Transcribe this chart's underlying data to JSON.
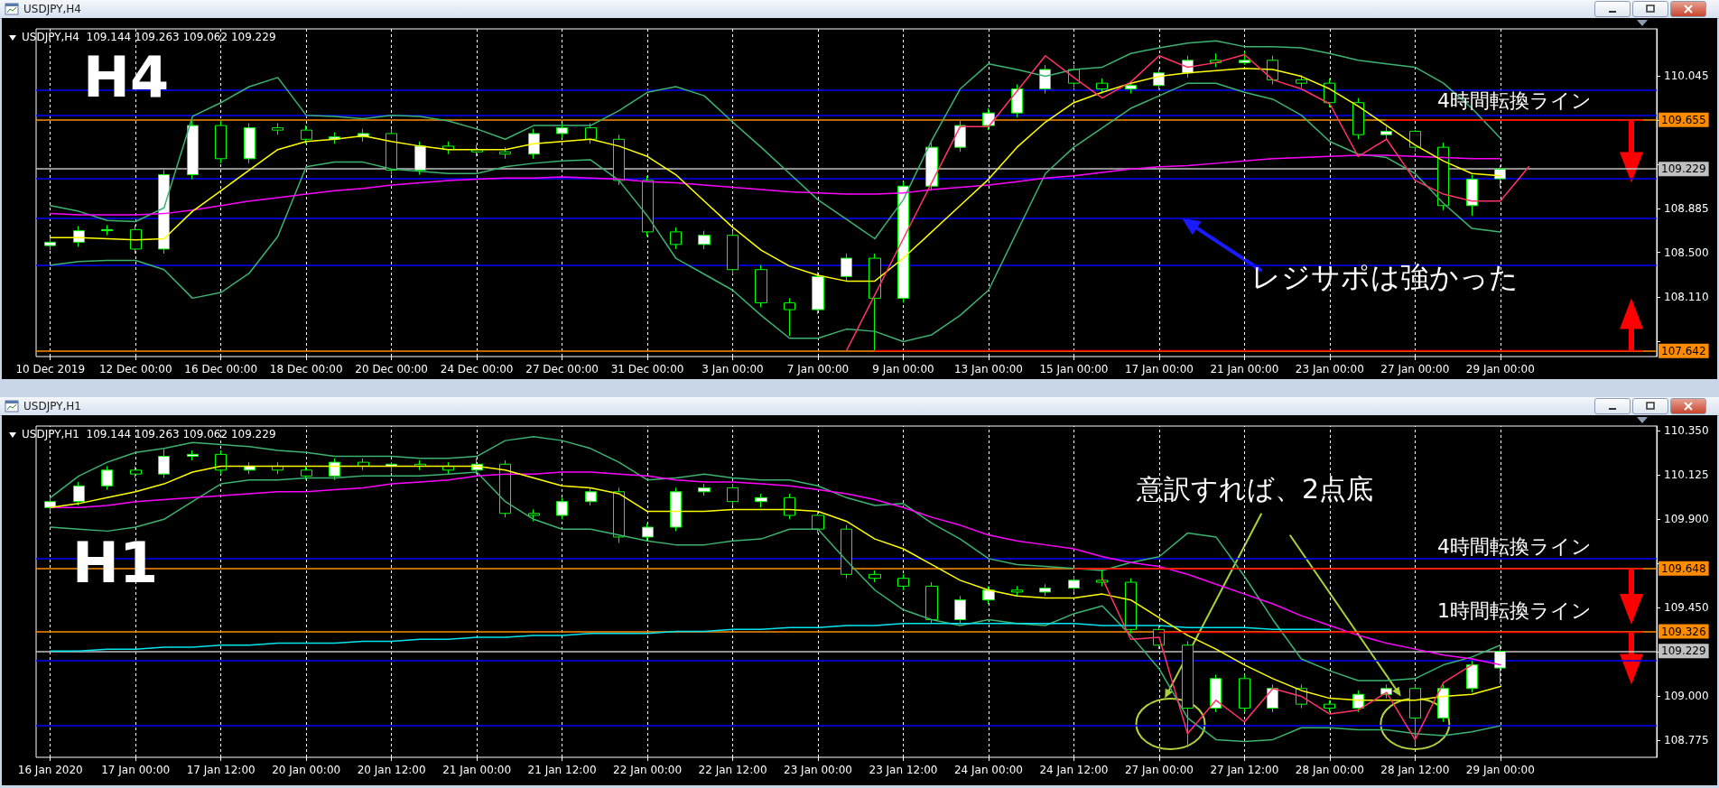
{
  "chart_data": [
    {
      "type": "candlestick",
      "title": "USDJPY,H4",
      "subtitle": "USDJPY,H4  109.144 109.263 109.062 109.229",
      "color": "#00ff00",
      "grid": "x",
      "marker": "none",
      "line_style": "solid",
      "categories": [
        "10 Dec 2019",
        null,
        null,
        "12 Dec 00:00",
        null,
        null,
        "16 Dec 00:00",
        null,
        null,
        "18 Dec 00:00",
        null,
        null,
        "20 Dec 00:00",
        null,
        null,
        "24 Dec 00:00",
        null,
        null,
        "27 Dec 00:00",
        null,
        null,
        "31 Dec 00:00",
        null,
        null,
        "3 Jan 00:00",
        null,
        null,
        "7 Jan 00:00",
        null,
        null,
        "9 Jan 00:00",
        null,
        null,
        "13 Jan 00:00",
        null,
        null,
        "15 Jan 00:00",
        null,
        null,
        "17 Jan 00:00",
        null,
        null,
        "21 Jan 00:00",
        null,
        null,
        "23 Jan 00:00",
        null,
        null,
        "27 Jan 00:00",
        null,
        null,
        "29 Jan 00:00",
        null,
        null,
        null,
        null,
        null
      ],
      "ohlc": [
        [
          108.56,
          108.63,
          108.52,
          108.59
        ],
        [
          108.59,
          108.73,
          108.55,
          108.69
        ],
        [
          108.69,
          108.74,
          108.65,
          108.7
        ],
        [
          108.7,
          108.74,
          108.49,
          108.53
        ],
        [
          108.53,
          109.22,
          108.49,
          109.18
        ],
        [
          109.18,
          109.65,
          109.14,
          109.61
        ],
        [
          109.61,
          109.65,
          109.28,
          109.32
        ],
        [
          109.32,
          109.63,
          109.28,
          109.59
        ],
        [
          109.59,
          109.63,
          109.53,
          109.57
        ],
        [
          109.57,
          109.61,
          109.45,
          109.49
        ],
        [
          109.49,
          109.55,
          109.45,
          109.51
        ],
        [
          109.51,
          109.58,
          109.47,
          109.54
        ],
        [
          109.54,
          109.58,
          109.18,
          109.22
        ],
        [
          109.22,
          109.47,
          109.18,
          109.43
        ],
        [
          109.43,
          109.47,
          109.36,
          109.4
        ],
        [
          109.4,
          109.44,
          109.34,
          109.38
        ],
        [
          109.38,
          109.42,
          109.32,
          109.36
        ],
        [
          109.36,
          109.58,
          109.32,
          109.54
        ],
        [
          109.54,
          109.63,
          109.5,
          109.59
        ],
        [
          109.59,
          109.63,
          109.45,
          109.49
        ],
        [
          109.49,
          109.53,
          109.09,
          109.13
        ],
        [
          109.13,
          109.17,
          108.64,
          108.68
        ],
        [
          108.68,
          108.72,
          108.53,
          108.57
        ],
        [
          108.57,
          108.69,
          108.53,
          108.65
        ],
        [
          108.65,
          108.69,
          108.31,
          108.35
        ],
        [
          108.35,
          108.39,
          108.02,
          108.06
        ],
        [
          108.06,
          108.1,
          107.77,
          108.0
        ],
        [
          108.0,
          108.33,
          107.96,
          108.29
        ],
        [
          108.29,
          108.49,
          108.25,
          108.45
        ],
        [
          108.45,
          108.49,
          107.642,
          108.1
        ],
        [
          108.1,
          109.12,
          108.06,
          109.08
        ],
        [
          109.08,
          109.46,
          109.04,
          109.42
        ],
        [
          109.42,
          109.65,
          109.38,
          109.61
        ],
        [
          109.61,
          109.76,
          109.57,
          109.72
        ],
        [
          109.72,
          109.97,
          109.68,
          109.93
        ],
        [
          109.93,
          110.14,
          109.89,
          110.1
        ],
        [
          110.1,
          110.14,
          109.94,
          109.98
        ],
        [
          109.98,
          110.02,
          109.89,
          109.93
        ],
        [
          109.93,
          110.0,
          109.89,
          109.96
        ],
        [
          109.96,
          110.11,
          109.92,
          110.07
        ],
        [
          110.07,
          110.22,
          110.03,
          110.18
        ],
        [
          110.18,
          110.24,
          110.12,
          110.16
        ],
        [
          110.16,
          110.26,
          110.14,
          110.18
        ],
        [
          110.18,
          110.22,
          109.97,
          110.01
        ],
        [
          110.01,
          110.05,
          109.94,
          109.98
        ],
        [
          109.98,
          110.02,
          109.77,
          109.81
        ],
        [
          109.81,
          109.85,
          109.49,
          109.53
        ],
        [
          109.53,
          109.6,
          109.49,
          109.56
        ],
        [
          109.56,
          109.57,
          109.38,
          109.42
        ],
        [
          109.42,
          109.46,
          108.87,
          108.91
        ],
        [
          108.91,
          109.18,
          108.82,
          109.14
        ],
        [
          109.144,
          109.263,
          109.062,
          109.229
        ],
        null,
        null,
        null,
        null,
        null
      ],
      "series": [
        {
          "type": "line",
          "color": "#3cb371",
          "values": [
            108.91,
            108.86,
            108.78,
            108.77,
            108.89,
            109.69,
            109.81,
            109.95,
            110.03,
            109.7,
            109.69,
            109.67,
            109.7,
            109.69,
            109.65,
            109.58,
            109.49,
            109.61,
            109.61,
            109.61,
            109.74,
            109.9,
            109.95,
            109.87,
            109.64,
            109.42,
            109.19,
            108.96,
            108.79,
            108.62,
            108.96,
            109.48,
            109.93,
            110.15,
            110.1,
            110.04,
            110.1,
            110.12,
            110.24,
            110.29,
            110.33,
            110.35,
            110.3,
            110.3,
            110.29,
            110.24,
            110.18,
            110.15,
            110.12,
            109.98,
            109.76,
            109.5,
            null,
            null,
            null,
            null,
            null
          ]
        },
        {
          "type": "line",
          "color": "#3cb371",
          "values": [
            108.39,
            108.42,
            108.43,
            108.43,
            108.35,
            108.1,
            108.15,
            108.32,
            108.64,
            109.25,
            109.29,
            109.29,
            109.23,
            109.21,
            109.19,
            109.19,
            109.25,
            109.28,
            109.3,
            109.31,
            109.13,
            108.82,
            108.45,
            108.31,
            108.17,
            107.95,
            107.75,
            107.75,
            107.83,
            107.81,
            107.72,
            107.78,
            107.95,
            108.17,
            108.68,
            109.19,
            109.42,
            109.59,
            109.76,
            109.87,
            109.98,
            109.98,
            109.9,
            109.84,
            109.7,
            109.47,
            109.36,
            109.33,
            109.19,
            108.93,
            108.71,
            108.68,
            null,
            null,
            null,
            null,
            null
          ]
        },
        {
          "type": "line",
          "color": "#ff00ff",
          "values": [
            108.84,
            108.83,
            108.83,
            108.83,
            108.84,
            108.87,
            108.91,
            108.95,
            108.98,
            109.01,
            109.04,
            109.06,
            109.09,
            109.11,
            109.13,
            109.14,
            109.15,
            109.15,
            109.16,
            109.15,
            109.14,
            109.12,
            109.11,
            109.09,
            109.07,
            109.05,
            109.03,
            109.02,
            109.01,
            109.01,
            109.02,
            109.05,
            109.07,
            109.09,
            109.12,
            109.15,
            109.17,
            109.2,
            109.23,
            109.25,
            109.26,
            109.28,
            109.3,
            109.32,
            109.33,
            109.34,
            109.35,
            109.35,
            109.34,
            109.33,
            109.32,
            109.32,
            null,
            null,
            null,
            null,
            null
          ]
        },
        {
          "type": "line",
          "color": "#ffff00",
          "values": [
            108.63,
            108.63,
            108.62,
            108.61,
            108.62,
            108.86,
            109.04,
            109.22,
            109.4,
            109.47,
            109.49,
            109.52,
            109.47,
            109.43,
            109.4,
            109.4,
            109.4,
            109.45,
            109.47,
            109.49,
            109.43,
            109.34,
            109.18,
            108.95,
            108.72,
            108.52,
            108.38,
            108.3,
            108.25,
            108.25,
            108.45,
            108.68,
            108.91,
            109.14,
            109.42,
            109.64,
            109.81,
            109.9,
            109.98,
            110.04,
            110.07,
            110.09,
            110.11,
            110.1,
            110.04,
            109.93,
            109.78,
            109.61,
            109.44,
            109.3,
            109.19,
            109.17,
            null,
            null,
            null,
            null,
            null
          ]
        },
        {
          "type": "line",
          "color": "#ff3366",
          "values": [
            null,
            null,
            null,
            null,
            null,
            null,
            null,
            null,
            null,
            null,
            null,
            null,
            null,
            null,
            null,
            null,
            null,
            null,
            null,
            null,
            null,
            null,
            null,
            null,
            null,
            null,
            null,
            null,
            107.64,
            108.13,
            108.62,
            109.11,
            109.6,
            109.6,
            109.91,
            110.22,
            110.03,
            109.85,
            109.99,
            110.22,
            110.12,
            110.16,
            110.23,
            110.01,
            109.93,
            109.8,
            109.34,
            109.49,
            109.13,
            109.01,
            108.95,
            108.95,
            109.25,
            null,
            null,
            null,
            null
          ]
        },
        {
          "type": "line",
          "color": "#ff0000",
          "values": [
            null,
            null,
            null,
            null,
            null,
            null,
            null,
            null,
            null,
            null,
            null,
            null,
            null,
            null,
            null,
            null,
            null,
            null,
            null,
            null,
            null,
            null,
            null,
            null,
            null,
            null,
            null,
            null,
            null,
            null,
            null,
            null,
            null,
            null,
            null,
            null,
            null,
            null,
            null,
            null,
            null,
            null,
            null,
            null,
            null,
            null,
            null,
            109.655,
            109.655,
            109.655,
            109.655,
            109.655,
            109.655,
            109.655,
            109.655,
            109.655,
            109.655
          ]
        },
        {
          "type": "line",
          "color": "#ff0000",
          "values": [
            null,
            null,
            null,
            null,
            null,
            null,
            null,
            null,
            null,
            null,
            null,
            null,
            null,
            null,
            null,
            null,
            null,
            null,
            null,
            null,
            null,
            null,
            null,
            null,
            null,
            null,
            null,
            null,
            null,
            107.642,
            107.642,
            107.642,
            107.642,
            107.642,
            107.642,
            107.642,
            107.642,
            107.642,
            107.642,
            107.642,
            107.642,
            107.642,
            107.642,
            107.642,
            107.642,
            107.642,
            107.642,
            107.642,
            107.642,
            107.642,
            107.642,
            107.642,
            107.642,
            107.642,
            107.642,
            107.642,
            107.642
          ]
        }
      ],
      "ylim": [
        107.59,
        110.455
      ],
      "yticks": [
        110.045,
        {
          "value": 109.655,
          "label": null
        },
        {
          "value": 109.27,
          "label": null
        },
        108.885,
        {
          "value": 108.5,
          "label": "108.500"
        },
        {
          "value": 108.11,
          "label": "108.110"
        },
        {
          "value": 107.725,
          "label": null
        }
      ],
      "ref_lines": [
        {
          "axis": "y",
          "value": 109.92,
          "color": "#0000ff"
        },
        {
          "axis": "y",
          "value": 109.7,
          "color": "#0000ff"
        },
        {
          "axis": "y",
          "value": 109.655,
          "label": "109.655",
          "color": "#ff8c00"
        },
        {
          "axis": "y",
          "value": 109.229,
          "label": "109.229",
          "color": "#c0c0c0"
        },
        {
          "axis": "y",
          "value": 109.15,
          "color": "#0000ff"
        },
        {
          "axis": "y",
          "value": 108.8,
          "color": "#0000ff"
        },
        {
          "axis": "y",
          "value": 108.39,
          "color": "#0000ff"
        },
        {
          "axis": "y",
          "value": 107.642,
          "label": "107.642",
          "color": "#ff8c00"
        }
      ],
      "annotations": [
        "H4",
        "4時間転換ライン",
        "レジサポは強かった"
      ]
    },
    {
      "type": "candlestick",
      "title": "USDJPY,H1",
      "subtitle": "USDJPY,H1  109.144 109.263 109.062 109.229",
      "color": "#00ff00",
      "grid": "x",
      "marker": "none",
      "line_style": "solid",
      "categories": [
        "16 Jan 2020",
        null,
        null,
        "17 Jan 00:00",
        null,
        null,
        "17 Jan 12:00",
        null,
        null,
        "20 Jan 00:00",
        null,
        null,
        "20 Jan 12:00",
        null,
        null,
        "21 Jan 00:00",
        null,
        null,
        "21 Jan 12:00",
        null,
        null,
        "22 Jan 00:00",
        null,
        null,
        "22 Jan 12:00",
        null,
        null,
        "23 Jan 00:00",
        null,
        null,
        "23 Jan 12:00",
        null,
        null,
        "24 Jan 00:00",
        null,
        null,
        "24 Jan 12:00",
        null,
        null,
        "27 Jan 00:00",
        null,
        null,
        "27 Jan 12:00",
        null,
        null,
        "28 Jan 00:00",
        null,
        null,
        "28 Jan 12:00",
        null,
        null,
        "29 Jan 00:00",
        null,
        null,
        null,
        null,
        null
      ],
      "ohlc": [
        [
          109.96,
          110.01,
          109.94,
          109.99
        ],
        [
          109.99,
          110.09,
          109.97,
          110.07
        ],
        [
          110.07,
          110.17,
          110.05,
          110.15
        ],
        [
          110.15,
          110.17,
          110.11,
          110.13
        ],
        [
          110.13,
          110.26,
          110.11,
          110.22
        ],
        [
          110.22,
          110.25,
          110.2,
          110.23
        ],
        [
          110.23,
          110.25,
          110.13,
          110.15
        ],
        [
          110.15,
          110.19,
          110.13,
          110.17
        ],
        [
          110.17,
          110.19,
          110.13,
          110.15
        ],
        [
          110.15,
          110.17,
          110.1,
          110.12
        ],
        [
          110.12,
          110.21,
          110.1,
          110.19
        ],
        [
          110.19,
          110.21,
          110.15,
          110.17
        ],
        [
          110.17,
          110.19,
          110.14,
          110.18
        ],
        [
          110.18,
          110.2,
          110.15,
          110.17
        ],
        [
          110.17,
          110.19,
          110.13,
          110.15
        ],
        [
          110.15,
          110.21,
          110.13,
          110.18
        ],
        [
          110.18,
          110.2,
          109.91,
          109.93
        ],
        [
          109.93,
          109.95,
          109.89,
          109.92
        ],
        [
          109.92,
          110.01,
          109.9,
          109.99
        ],
        [
          109.99,
          110.06,
          109.97,
          110.04
        ],
        [
          110.04,
          110.06,
          109.78,
          109.81
        ],
        [
          109.81,
          109.88,
          109.79,
          109.86
        ],
        [
          109.86,
          110.06,
          109.84,
          110.04
        ],
        [
          110.04,
          110.08,
          110.02,
          110.06
        ],
        [
          110.06,
          110.08,
          109.97,
          109.99
        ],
        [
          109.99,
          110.03,
          109.96,
          110.01
        ],
        [
          110.01,
          110.03,
          109.9,
          109.92
        ],
        [
          109.92,
          109.94,
          109.83,
          109.85
        ],
        [
          109.85,
          109.87,
          109.6,
          109.62
        ],
        [
          109.62,
          109.64,
          109.58,
          109.6
        ],
        [
          109.6,
          109.62,
          109.54,
          109.56
        ],
        [
          109.56,
          109.58,
          109.37,
          109.39
        ],
        [
          109.39,
          109.51,
          109.37,
          109.49
        ],
        [
          109.49,
          109.56,
          109.47,
          109.54
        ],
        [
          109.54,
          109.56,
          109.51,
          109.53
        ],
        [
          109.53,
          109.57,
          109.51,
          109.55
        ],
        [
          109.55,
          109.61,
          109.53,
          109.59
        ],
        [
          109.59,
          109.65,
          109.56,
          109.58
        ],
        [
          109.58,
          109.6,
          109.32,
          109.34
        ],
        [
          109.34,
          109.36,
          109.24,
          109.26
        ],
        [
          109.26,
          109.28,
          108.74,
          108.94
        ],
        [
          108.94,
          109.11,
          108.92,
          109.09
        ],
        [
          109.09,
          109.11,
          108.92,
          108.94
        ],
        [
          108.94,
          109.06,
          108.92,
          109.04
        ],
        [
          109.04,
          109.06,
          108.94,
          108.96
        ],
        [
          108.96,
          108.98,
          108.92,
          108.94
        ],
        [
          108.94,
          109.03,
          108.92,
          109.01
        ],
        [
          109.01,
          109.06,
          108.99,
          109.04
        ],
        [
          109.04,
          109.06,
          108.75,
          108.89
        ],
        [
          108.89,
          109.06,
          108.87,
          109.04
        ],
        [
          109.04,
          109.18,
          109.02,
          109.16
        ],
        [
          109.144,
          109.263,
          109.062,
          109.229
        ],
        null,
        null,
        null,
        null,
        null
      ],
      "series": [
        {
          "type": "line",
          "color": "#3cb371",
          "values": [
            110.01,
            110.12,
            110.19,
            110.24,
            110.26,
            110.29,
            110.28,
            110.27,
            110.25,
            110.24,
            110.22,
            110.22,
            110.22,
            110.21,
            110.21,
            110.22,
            110.3,
            110.32,
            110.3,
            110.26,
            110.19,
            110.1,
            110.11,
            110.13,
            110.11,
            110.1,
            110.1,
            110.07,
            110.01,
            109.97,
            109.98,
            109.88,
            109.8,
            109.7,
            109.67,
            109.66,
            109.65,
            109.64,
            109.68,
            109.71,
            109.83,
            109.81,
            109.61,
            109.39,
            109.19,
            109.13,
            109.08,
            109.08,
            109.09,
            109.16,
            109.2,
            109.26,
            null,
            null,
            null,
            null,
            null
          ]
        },
        {
          "type": "line",
          "color": "#3cb371",
          "values": [
            109.86,
            109.85,
            109.84,
            109.86,
            109.9,
            109.99,
            110.08,
            110.1,
            110.1,
            110.11,
            110.11,
            110.12,
            110.12,
            110.12,
            110.13,
            110.14,
            109.99,
            109.9,
            109.85,
            109.85,
            109.82,
            109.79,
            109.77,
            109.77,
            109.79,
            109.8,
            109.85,
            109.85,
            109.69,
            109.54,
            109.44,
            109.39,
            109.36,
            109.39,
            109.37,
            109.36,
            109.42,
            109.46,
            109.31,
            109.14,
            108.89,
            108.78,
            108.77,
            108.78,
            108.84,
            108.84,
            108.83,
            108.83,
            108.81,
            108.8,
            108.82,
            108.85,
            null,
            null,
            null,
            null,
            null
          ]
        },
        {
          "type": "line",
          "color": "#00e5ee",
          "values": [
            109.23,
            109.23,
            109.24,
            109.24,
            109.25,
            109.25,
            109.26,
            109.26,
            109.27,
            109.27,
            109.27,
            109.28,
            109.28,
            109.29,
            109.29,
            109.3,
            109.3,
            109.31,
            109.31,
            109.32,
            109.32,
            109.32,
            109.33,
            109.33,
            109.34,
            109.34,
            109.35,
            109.35,
            109.36,
            109.36,
            109.37,
            109.37,
            109.37,
            109.37,
            109.37,
            109.37,
            109.37,
            109.36,
            109.36,
            109.36,
            109.35,
            109.35,
            109.35,
            109.34,
            109.34,
            109.34,
            null,
            null,
            null,
            null,
            null,
            null,
            null,
            null,
            null,
            null,
            null
          ]
        },
        {
          "type": "line",
          "color": "#ff00ff",
          "values": [
            109.96,
            109.96,
            109.97,
            109.99,
            110.0,
            110.01,
            110.02,
            110.03,
            110.04,
            110.04,
            110.05,
            110.06,
            110.08,
            110.09,
            110.1,
            110.12,
            110.13,
            110.13,
            110.14,
            110.14,
            110.13,
            110.12,
            110.1,
            110.09,
            110.09,
            110.08,
            110.07,
            110.05,
            110.03,
            110.0,
            109.96,
            109.91,
            109.87,
            109.82,
            109.79,
            109.77,
            109.75,
            109.71,
            109.68,
            109.66,
            109.62,
            109.57,
            109.52,
            109.47,
            109.41,
            109.36,
            109.31,
            109.27,
            109.24,
            109.21,
            109.19,
            109.16,
            null,
            null,
            null,
            null,
            null
          ]
        },
        {
          "type": "line",
          "color": "#ffff00",
          "values": [
            109.96,
            109.98,
            110.01,
            110.04,
            110.08,
            110.14,
            110.17,
            110.17,
            110.17,
            110.17,
            110.17,
            110.17,
            110.17,
            110.17,
            110.17,
            110.17,
            110.15,
            110.11,
            110.07,
            110.06,
            110.03,
            109.94,
            109.94,
            109.94,
            109.95,
            109.95,
            109.95,
            109.94,
            109.89,
            109.8,
            109.75,
            109.67,
            109.59,
            109.54,
            109.51,
            109.5,
            109.5,
            109.52,
            109.49,
            109.4,
            109.31,
            109.24,
            109.16,
            109.09,
            109.03,
            108.99,
            108.98,
            108.98,
            108.98,
            109.0,
            109.01,
            109.05,
            null,
            null,
            null,
            null,
            null
          ]
        },
        {
          "type": "line",
          "color": "#ff3366",
          "values": [
            null,
            null,
            null,
            null,
            null,
            null,
            null,
            null,
            null,
            null,
            null,
            null,
            null,
            null,
            null,
            null,
            null,
            null,
            null,
            null,
            null,
            null,
            null,
            null,
            null,
            null,
            null,
            null,
            null,
            null,
            null,
            null,
            null,
            null,
            null,
            null,
            null,
            109.6,
            109.29,
            109.3,
            108.81,
            108.98,
            108.87,
            109.04,
            109.0,
            108.91,
            108.93,
            109.02,
            108.78,
            109.07,
            109.16,
            null,
            null,
            null,
            null,
            null,
            null
          ]
        },
        {
          "type": "line",
          "color": "#ff0000",
          "values": [
            null,
            null,
            null,
            null,
            null,
            null,
            null,
            null,
            null,
            null,
            null,
            null,
            null,
            null,
            null,
            null,
            null,
            null,
            null,
            null,
            null,
            null,
            null,
            null,
            null,
            null,
            null,
            null,
            null,
            null,
            null,
            null,
            null,
            null,
            null,
            null,
            109.648,
            109.648,
            109.648,
            109.648,
            109.648,
            109.648,
            109.648,
            109.648,
            109.648,
            109.648,
            109.648,
            109.648,
            109.648,
            109.648,
            109.648,
            109.648,
            109.648,
            109.648,
            109.648,
            109.648,
            109.648
          ]
        },
        {
          "type": "line",
          "color": "#ff0000",
          "values": [
            null,
            null,
            null,
            null,
            null,
            null,
            null,
            null,
            null,
            null,
            null,
            null,
            null,
            null,
            null,
            null,
            null,
            null,
            null,
            null,
            null,
            null,
            null,
            null,
            null,
            null,
            null,
            null,
            null,
            null,
            null,
            null,
            null,
            null,
            null,
            null,
            null,
            null,
            null,
            109.326,
            109.326,
            109.326,
            109.326,
            109.326,
            109.326,
            109.326,
            109.326,
            109.326,
            109.326,
            109.326,
            109.326,
            109.326,
            109.326,
            109.326,
            109.326,
            109.326,
            109.326
          ]
        }
      ],
      "ylim": [
        108.69,
        110.374
      ],
      "yticks": [
        {
          "value": 110.35,
          "label": "110.350"
        },
        110.125,
        {
          "value": 109.9,
          "label": "109.900"
        },
        {
          "value": 109.675,
          "label": null
        },
        {
          "value": 109.45,
          "label": "109.450"
        },
        {
          "value": 109.225,
          "label": null
        },
        {
          "value": 109,
          "label": "109.000"
        },
        108.775
      ],
      "ref_lines": [
        {
          "axis": "y",
          "value": 109.7,
          "color": "#0000ff"
        },
        {
          "axis": "y",
          "value": 109.648,
          "label": "109.648",
          "color": "#ff8c00"
        },
        {
          "axis": "y",
          "value": 109.326,
          "label": "109.326",
          "color": "#ff8c00"
        },
        {
          "axis": "y",
          "value": 109.229,
          "label": "109.229",
          "color": "#c0c0c0"
        },
        {
          "axis": "y",
          "value": 109.18,
          "color": "#0000ff"
        },
        {
          "axis": "y",
          "value": 108.85,
          "color": "#0000ff"
        }
      ],
      "annotations": [
        "H1",
        "意訳すれば、2点底",
        "4時間転換ライン",
        "1時間転換ライン"
      ]
    }
  ]
}
